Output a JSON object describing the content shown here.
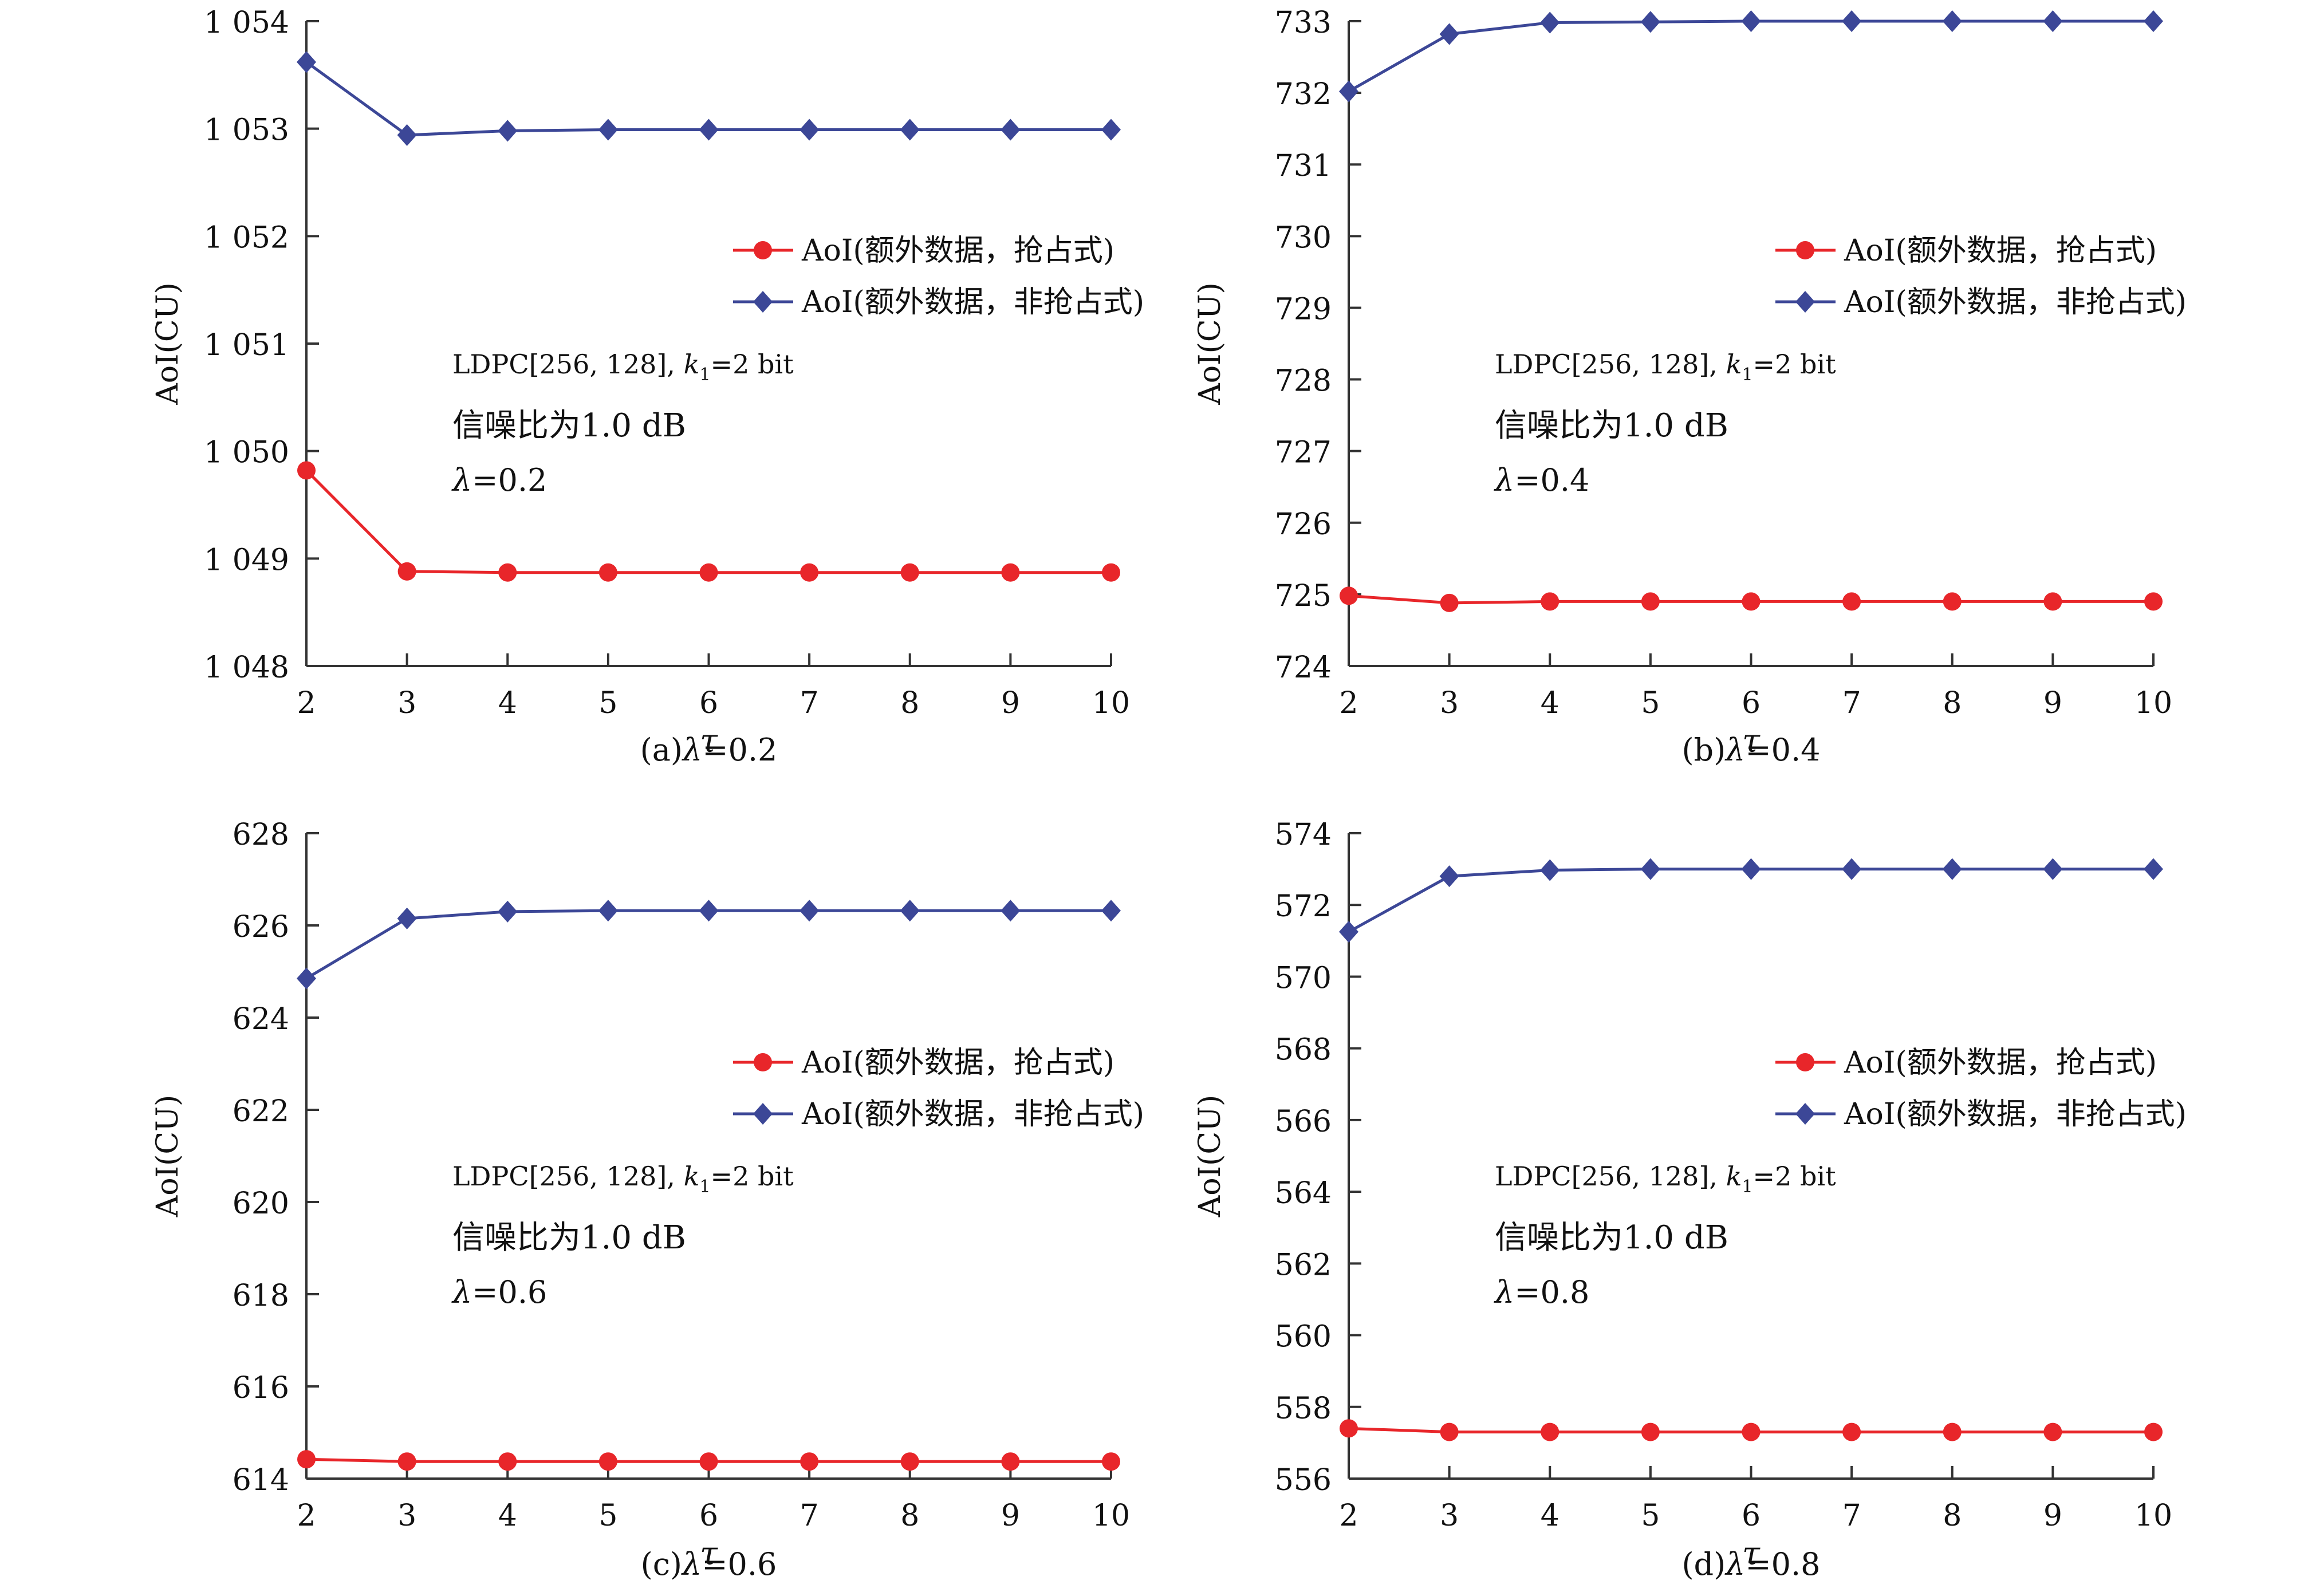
{
  "colors": {
    "preemptive": "#e8262a",
    "non_preemptive": "#3c4797",
    "axis": "#333333",
    "text": "#111111"
  },
  "chart_data": [
    {
      "type": "line",
      "caption_prefix": "(a)",
      "caption_lambda": "λ",
      "caption_value": "=0.2",
      "xlabel": "τ",
      "ylabel": "AoI(CU)",
      "x": [
        2,
        3,
        4,
        5,
        6,
        7,
        8,
        9,
        10
      ],
      "xlim": [
        2,
        10
      ],
      "ylim": [
        1048,
        1054
      ],
      "yticks": [
        1048,
        1049,
        1050,
        1051,
        1052,
        1053,
        1054
      ],
      "ytick_labels": [
        "1 048",
        "1 049",
        "1 050",
        "1 051",
        "1 052",
        "1 053",
        "1 054"
      ],
      "legend_position": "upper-right",
      "series": [
        {
          "name": "AoI(额外数据，抢占式)",
          "marker": "circle",
          "color": "#e8262a",
          "values": [
            1049.82,
            1048.88,
            1048.87,
            1048.87,
            1048.87,
            1048.87,
            1048.87,
            1048.87,
            1048.87
          ]
        },
        {
          "name": "AoI(额外数据，非抢占式)",
          "marker": "diamond",
          "color": "#3c4797",
          "values": [
            1053.62,
            1052.94,
            1052.98,
            1052.99,
            1052.99,
            1052.99,
            1052.99,
            1052.99,
            1052.99
          ]
        }
      ],
      "annotations": {
        "code_prefix": "LDPC[256, 128], ",
        "k_symbol": "k",
        "k_sub": "1",
        "k_value": "=2 bit",
        "snr": "信噪比为1.0 dB",
        "lambda_symbol": "λ",
        "lambda_value": "=0.2"
      }
    },
    {
      "type": "line",
      "caption_prefix": "(b)",
      "caption_lambda": "λ",
      "caption_value": "=0.4",
      "xlabel": "τ",
      "ylabel": "AoI(CU)",
      "x": [
        2,
        3,
        4,
        5,
        6,
        7,
        8,
        9,
        10
      ],
      "xlim": [
        2,
        10
      ],
      "ylim": [
        724,
        733
      ],
      "yticks": [
        724,
        725,
        726,
        727,
        728,
        729,
        730,
        731,
        732,
        733
      ],
      "ytick_labels": [
        "724",
        "725",
        "726",
        "727",
        "728",
        "729",
        "730",
        "731",
        "732",
        "733"
      ],
      "legend_position": "upper-right",
      "series": [
        {
          "name": "AoI(额外数据，抢占式)",
          "marker": "circle",
          "color": "#e8262a",
          "values": [
            724.98,
            724.88,
            724.9,
            724.9,
            724.9,
            724.9,
            724.9,
            724.9,
            724.9
          ]
        },
        {
          "name": "AoI(额外数据，非抢占式)",
          "marker": "diamond",
          "color": "#3c4797",
          "values": [
            732.02,
            732.82,
            732.98,
            732.99,
            733.0,
            733.0,
            733.0,
            733.0,
            733.0
          ]
        }
      ],
      "annotations": {
        "code_prefix": "LDPC[256, 128], ",
        "k_symbol": "k",
        "k_sub": "1",
        "k_value": "=2 bit",
        "snr": "信噪比为1.0 dB",
        "lambda_symbol": "λ",
        "lambda_value": "=0.4"
      }
    },
    {
      "type": "line",
      "caption_prefix": "(c)",
      "caption_lambda": "λ",
      "caption_value": "=0.6",
      "xlabel": "τ",
      "ylabel": "AoI(CU)",
      "x": [
        2,
        3,
        4,
        5,
        6,
        7,
        8,
        9,
        10
      ],
      "xlim": [
        2,
        10
      ],
      "ylim": [
        614,
        628
      ],
      "yticks": [
        614,
        616,
        618,
        620,
        622,
        624,
        626,
        628
      ],
      "ytick_labels": [
        "614",
        "616",
        "618",
        "620",
        "622",
        "624",
        "626",
        "628"
      ],
      "legend_position": "upper-right",
      "series": [
        {
          "name": "AoI(额外数据，抢占式)",
          "marker": "circle",
          "color": "#e8262a",
          "values": [
            614.42,
            614.37,
            614.37,
            614.37,
            614.37,
            614.37,
            614.37,
            614.37,
            614.37
          ]
        },
        {
          "name": "AoI(额外数据，非抢占式)",
          "marker": "diamond",
          "color": "#3c4797",
          "values": [
            624.85,
            626.15,
            626.3,
            626.32,
            626.32,
            626.32,
            626.32,
            626.32,
            626.32
          ]
        }
      ],
      "annotations": {
        "code_prefix": "LDPC[256, 128], ",
        "k_symbol": "k",
        "k_sub": "1",
        "k_value": "=2 bit",
        "snr": "信噪比为1.0 dB",
        "lambda_symbol": "λ",
        "lambda_value": "=0.6"
      }
    },
    {
      "type": "line",
      "caption_prefix": "(d)",
      "caption_lambda": "λ",
      "caption_value": "=0.8",
      "xlabel": "τ",
      "ylabel": "AoI(CU)",
      "x": [
        2,
        3,
        4,
        5,
        6,
        7,
        8,
        9,
        10
      ],
      "xlim": [
        2,
        10
      ],
      "ylim": [
        556,
        574
      ],
      "yticks": [
        556,
        558,
        560,
        562,
        564,
        566,
        568,
        570,
        572,
        574
      ],
      "ytick_labels": [
        "556",
        "558",
        "560",
        "562",
        "564",
        "566",
        "568",
        "570",
        "572",
        "574"
      ],
      "legend_position": "upper-right",
      "series": [
        {
          "name": "AoI(额外数据，抢占式)",
          "marker": "circle",
          "color": "#e8262a",
          "values": [
            557.4,
            557.3,
            557.3,
            557.3,
            557.3,
            557.3,
            557.3,
            557.3,
            557.3
          ]
        },
        {
          "name": "AoI(额外数据，非抢占式)",
          "marker": "diamond",
          "color": "#3c4797",
          "values": [
            571.25,
            572.8,
            572.97,
            573.0,
            573.0,
            573.0,
            573.0,
            573.0,
            573.0
          ]
        }
      ],
      "annotations": {
        "code_prefix": "LDPC[256, 128], ",
        "k_symbol": "k",
        "k_sub": "1",
        "k_value": "=2 bit",
        "snr": "信噪比为1.0 dB",
        "lambda_symbol": "λ",
        "lambda_value": "=0.8"
      }
    }
  ]
}
